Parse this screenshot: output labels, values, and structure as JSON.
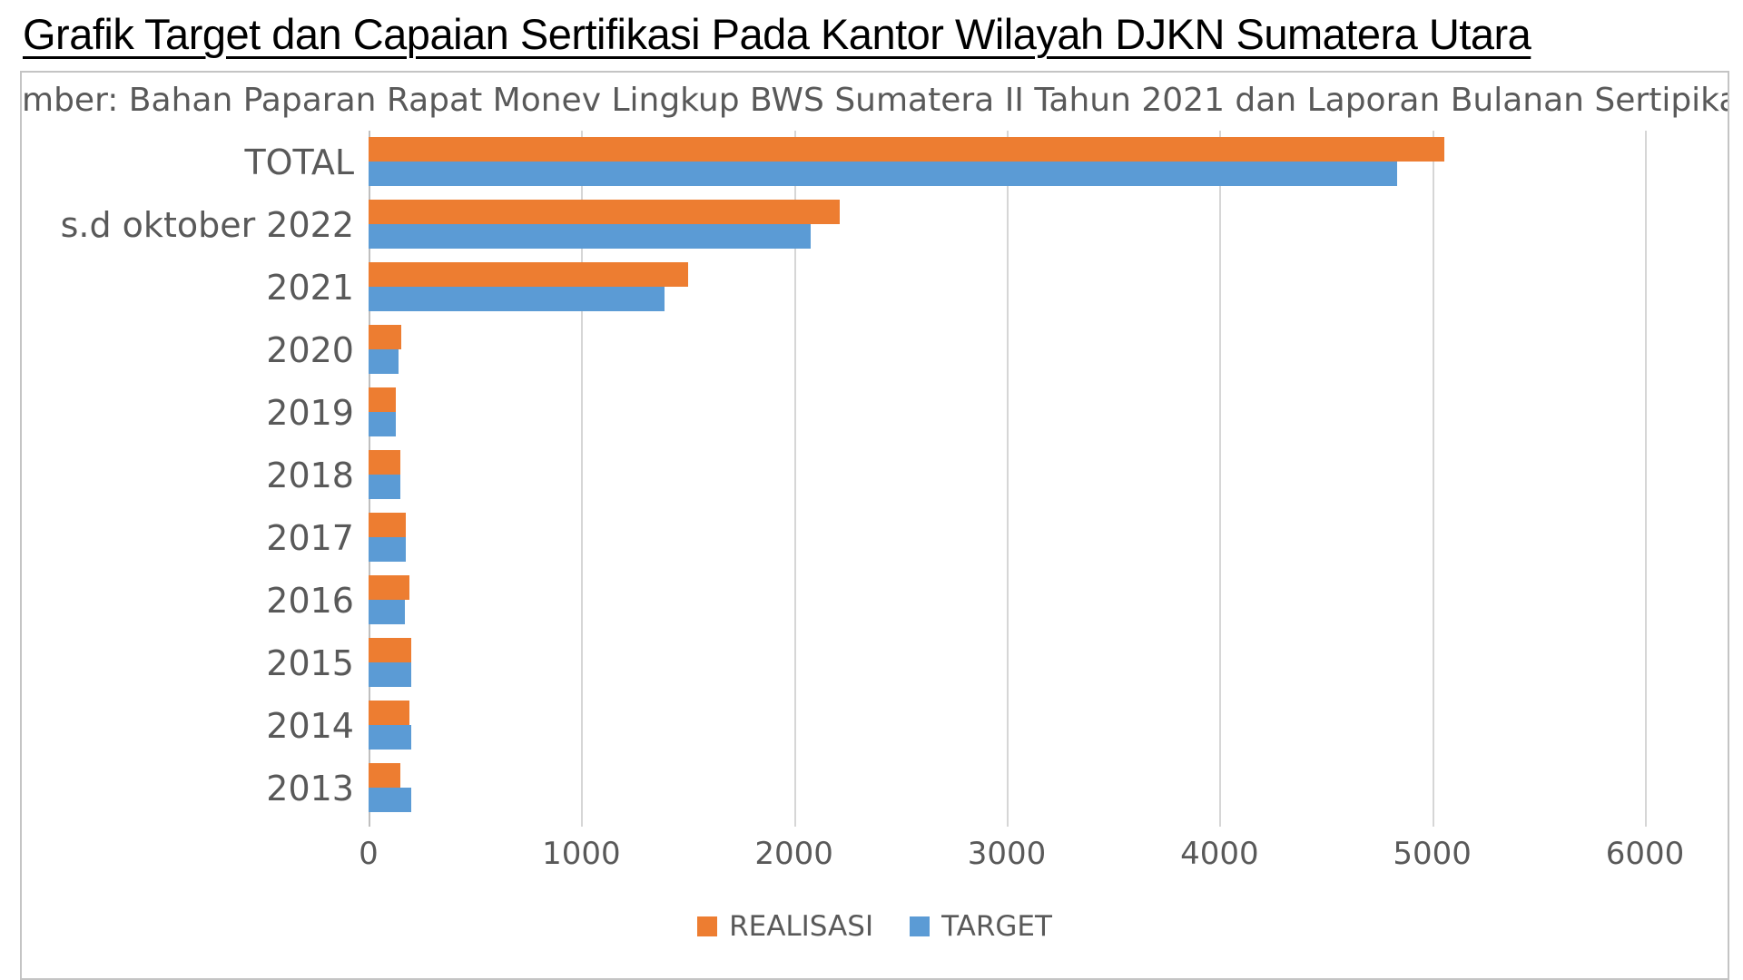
{
  "page": {
    "title": "Grafik Target dan Capaian Sertifikasi Pada Kantor Wilayah DJKN Sumatera Utara",
    "source_note_visible": "mber: Bahan Paparan Rapat Monev Lingkup BWS Sumatera II Tahun 2021 dan Laporan Bulanan Sertipika"
  },
  "colors": {
    "realisasi": "#ED7D31",
    "target": "#5B9BD5",
    "gridline": "#D6D6D6",
    "axis_text": "#595959",
    "panel_border": "#C4C4C4",
    "title_text": "#000000"
  },
  "chart_data": {
    "type": "bar",
    "orientation": "horizontal",
    "title": "Grafik Target dan Capaian Sertifikasi Pada Kantor Wilayah DJKN Sumatera Utara",
    "categories": [
      "TOTAL",
      "s.d oktober 2022",
      "2021",
      "2020",
      "2019",
      "2018",
      "2017",
      "2016",
      "2015",
      "2014",
      "2013"
    ],
    "series": [
      {
        "name": "REALISASI",
        "color": "#ED7D31",
        "values": [
          5055,
          2215,
          1500,
          155,
          130,
          150,
          175,
          190,
          200,
          190,
          150
        ]
      },
      {
        "name": "TARGET",
        "color": "#5B9BD5",
        "values": [
          4835,
          2080,
          1390,
          140,
          130,
          150,
          175,
          170,
          200,
          200,
          200
        ]
      }
    ],
    "xlabel": "",
    "ylabel": "",
    "xlim": [
      0,
      6000
    ],
    "x_ticks": [
      0,
      1000,
      2000,
      3000,
      4000,
      5000,
      6000
    ],
    "grid": true,
    "legend_position": "bottom"
  }
}
